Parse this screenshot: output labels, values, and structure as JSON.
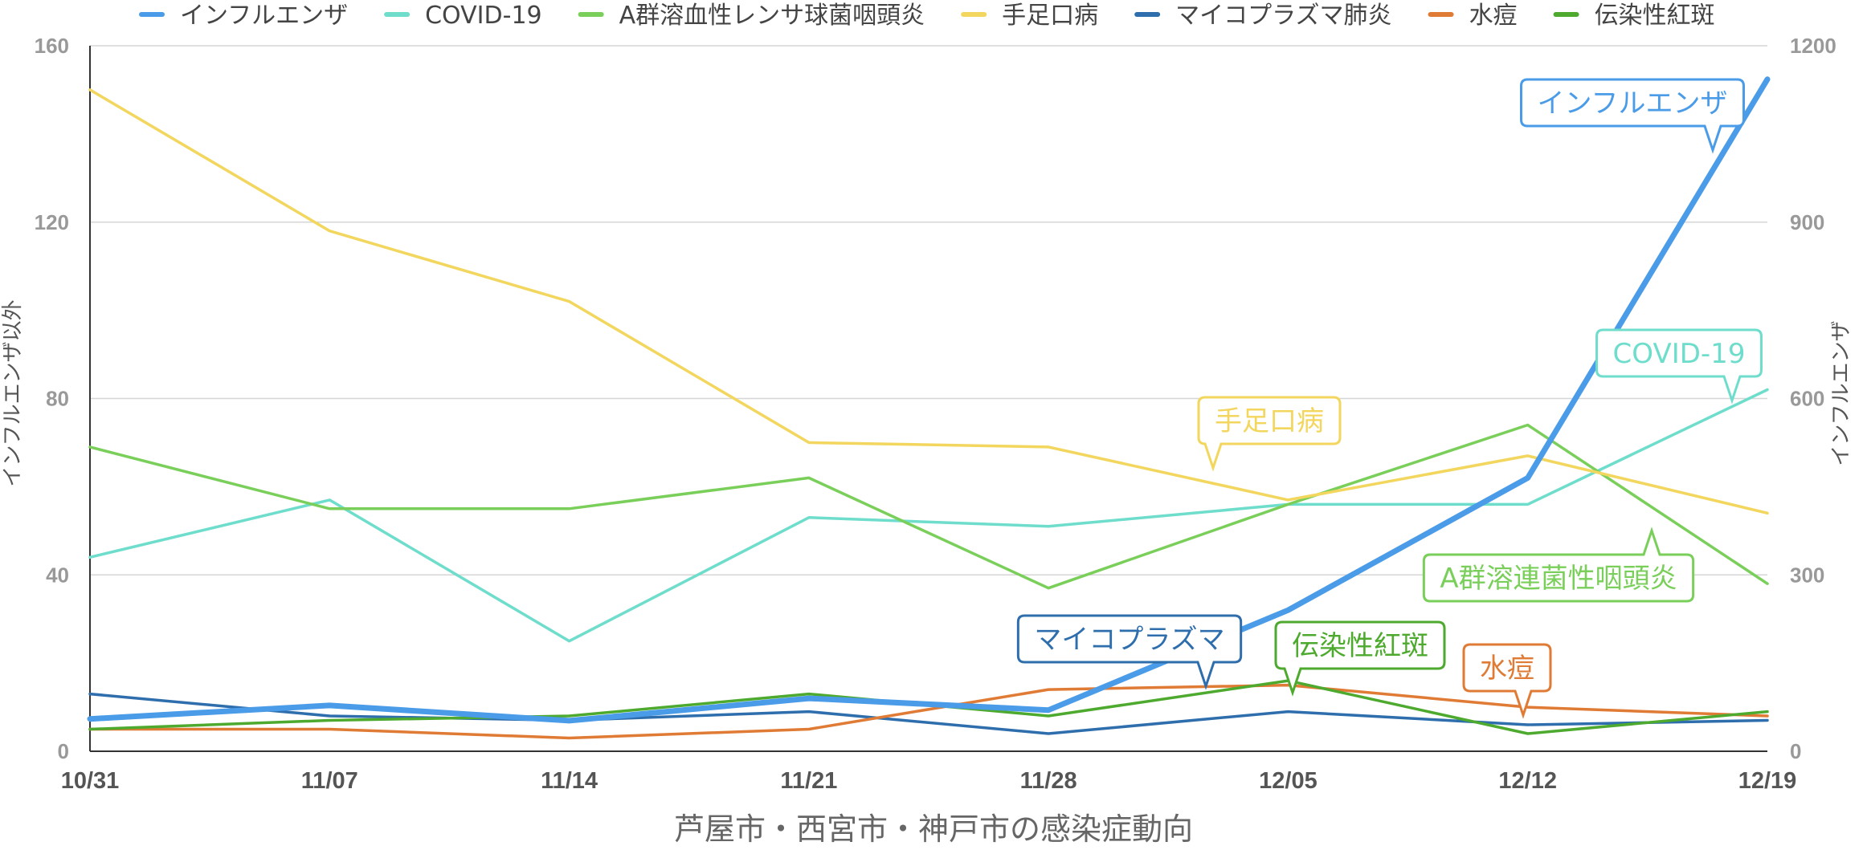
{
  "chart_data": {
    "type": "line",
    "xlabel": "芦屋市・西宮市・神戸市の感染症動向",
    "ylabel_left": "インフルエンザ以外",
    "ylabel_right": "インフルエンザ",
    "categories": [
      "10/31",
      "11/07",
      "11/14",
      "11/21",
      "11/28",
      "12/05",
      "12/12",
      "12/19"
    ],
    "y_left": {
      "range": [
        0,
        160
      ],
      "ticks": [
        "0",
        "40",
        "80",
        "120",
        "160"
      ]
    },
    "y_right": {
      "range": [
        0,
        1200
      ],
      "ticks": [
        "0",
        "300",
        "600",
        "900",
        "1200"
      ]
    },
    "grid": true,
    "legend": "top",
    "series": [
      {
        "name": "インフルエンザ",
        "axis": "right",
        "color": "#4A9BE8",
        "values": [
          55,
          78,
          52,
          90,
          70,
          240,
          465,
          1143
        ]
      },
      {
        "name": "COVID-19",
        "axis": "left",
        "color": "#6EDDCC",
        "values": [
          44,
          57,
          25,
          53,
          51,
          56,
          56,
          82
        ]
      },
      {
        "name": "A群溶血性レンサ球菌咽頭炎",
        "axis": "left",
        "color": "#7ACF5A",
        "values": [
          69,
          55,
          55,
          62,
          37,
          56,
          74,
          38
        ]
      },
      {
        "name": "手足口病",
        "axis": "left",
        "color": "#F2D65E",
        "values": [
          150,
          118,
          102,
          70,
          69,
          57,
          67,
          54
        ]
      },
      {
        "name": "マイコプラズマ肺炎",
        "axis": "left",
        "color": "#2E6EAD",
        "values": [
          13,
          8,
          7,
          9,
          4,
          9,
          6,
          7
        ]
      },
      {
        "name": "水痘",
        "axis": "left",
        "color": "#E07B35",
        "values": [
          5,
          5,
          3,
          5,
          14,
          15,
          10,
          8
        ]
      },
      {
        "name": "伝染性紅斑",
        "axis": "left",
        "color": "#4DAA2E",
        "values": [
          5,
          7,
          8,
          13,
          8,
          16,
          4,
          9
        ]
      }
    ],
    "annotations": [
      {
        "text": "インフルエンザ",
        "series": "インフルエンザ",
        "color": "#4A9BE8"
      },
      {
        "text": "COVID-19",
        "series": "COVID-19",
        "color": "#6EDDCC"
      },
      {
        "text": "手足口病",
        "series": "手足口病",
        "color": "#F2D65E"
      },
      {
        "text": "A群溶連菌性咽頭炎",
        "series": "A群溶血性レンサ球菌咽頭炎",
        "color": "#7ACF5A"
      },
      {
        "text": "マイコプラズマ",
        "series": "マイコプラズマ肺炎",
        "color": "#2E6EAD"
      },
      {
        "text": "伝染性紅斑",
        "series": "伝染性紅斑",
        "color": "#4DAA2E"
      },
      {
        "text": "水痘",
        "series": "水痘",
        "color": "#E07B35"
      }
    ]
  }
}
